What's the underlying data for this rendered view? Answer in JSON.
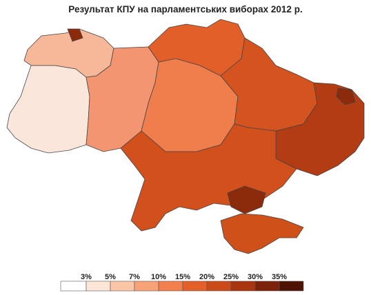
{
  "title": "Результат КПУ на парламентських виборах 2012 р.",
  "legend": {
    "thresholds": [
      "3%",
      "5%",
      "7%",
      "10%",
      "15%",
      "20%",
      "25%",
      "30%",
      "35%"
    ],
    "colors": [
      "#ffffff",
      "#fde6d8",
      "#fbc6a8",
      "#f8a27a",
      "#f2804e",
      "#e3602a",
      "#cc4a18",
      "#a83510",
      "#7d220a",
      "#4e1204"
    ]
  },
  "regions": [
    {
      "name": "west",
      "color": "#fbe6dc"
    },
    {
      "name": "west-fringe",
      "color": "#f7b899"
    },
    {
      "name": "north-west",
      "color": "#f29570"
    },
    {
      "name": "central",
      "color": "#f07d4c"
    },
    {
      "name": "north-center",
      "color": "#e35f2a"
    },
    {
      "name": "north-east",
      "color": "#d4531f"
    },
    {
      "name": "south",
      "color": "#d2501c"
    },
    {
      "name": "east",
      "color": "#b23c14"
    },
    {
      "name": "donbas",
      "color": "#8c2a0c"
    },
    {
      "name": "crimea",
      "color": "#cf5019"
    }
  ]
}
